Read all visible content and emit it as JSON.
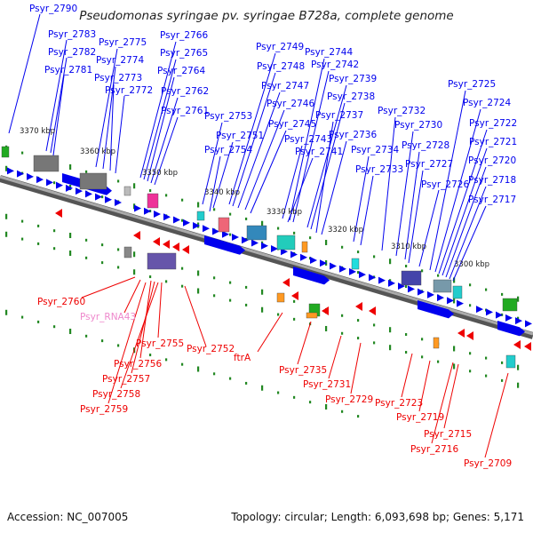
{
  "title": "Pseudomonas syringae pv. syringae B728a, complete genome",
  "footer": {
    "accession": "Accession: NC_007005",
    "summary": "Topology: circular; Length: 6,093,698 bp; Genes: 5,171"
  },
  "colors": {
    "forward_strand": "#0000ee",
    "reverse_strand": "#ee0000",
    "rna_label": "#ee88cc",
    "tick": "#228822",
    "backbone": "#888888"
  },
  "kbp_ticks": [
    "3370 kbp",
    "3360 kbp",
    "3350 kbp",
    "3340 kbp",
    "3330 kbp",
    "3320 kbp",
    "3310 kbp",
    "3300 kbp"
  ],
  "forward_labels": [
    "Psyr_2790",
    "Psyr_2783",
    "Psyr_2782",
    "Psyr_2781",
    "Psyr_2775",
    "Psyr_2774",
    "Psyr_2773",
    "Psyr_2772",
    "Psyr_2766",
    "Psyr_2765",
    "Psyr_2764",
    "Psyr_2762",
    "Psyr_2761",
    "Psyr_2749",
    "Psyr_2748",
    "Psyr_2747",
    "Psyr_2746",
    "Psyr_2745",
    "Psyr_2744",
    "Psyr_2742",
    "Psyr_2739",
    "Psyr_2738",
    "Psyr_2737",
    "Psyr_2736",
    "Psyr_2753",
    "Psyr_2751",
    "Psyr_2754",
    "Psyr_2743",
    "Psyr_2741",
    "Psyr_2734",
    "Psyr_2733",
    "Psyr_2732",
    "Psyr_2730",
    "Psyr_2728",
    "Psyr_2727",
    "Psyr_2726",
    "Psyr_2725",
    "Psyr_2724",
    "Psyr_2722",
    "Psyr_2721",
    "Psyr_2720",
    "Psyr_2718",
    "Psyr_2717"
  ],
  "reverse_labels": [
    "Psyr_2760",
    "Psyr_RNA43",
    "Psyr_2755",
    "Psyr_2752",
    "Psyr_2756",
    "Psyr_2757",
    "Psyr_2758",
    "Psyr_2759",
    "ftrA",
    "Psyr_2735",
    "Psyr_2731",
    "Psyr_2729",
    "Psyr_2723",
    "Psyr_2719",
    "Psyr_2715",
    "Psyr_2716",
    "Psyr_2709"
  ]
}
